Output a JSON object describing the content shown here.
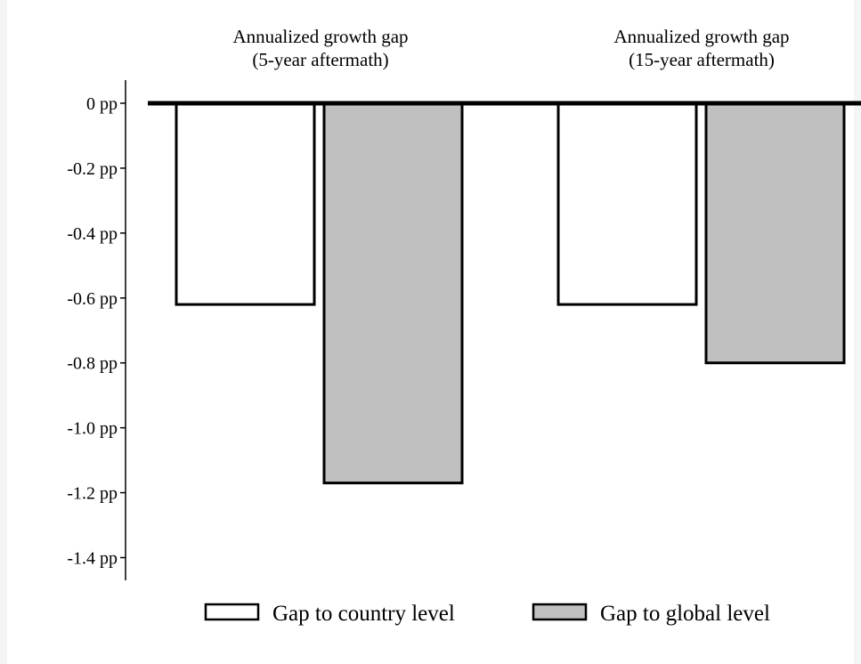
{
  "chart_data": {
    "type": "bar",
    "categories": [
      [
        "Annualized growth gap",
        "(5-year aftermath)"
      ],
      [
        "Annualized growth gap",
        "(15-year aftermath)"
      ]
    ],
    "series": [
      {
        "name": "Gap to country level",
        "values": [
          -0.62,
          -0.62
        ],
        "color": "#ffffff"
      },
      {
        "name": "Gap to global level",
        "values": [
          -1.17,
          -0.8
        ],
        "color": "#c0c0c0"
      }
    ],
    "ylim": [
      -1.47,
      0
    ],
    "yticks": [
      0,
      -0.2,
      -0.4,
      -0.6,
      -0.8,
      -1.0,
      -1.2,
      -1.4
    ],
    "ytick_labels": [
      "0 pp",
      "-0.2 pp",
      "-0.4 pp",
      "-0.6 pp",
      "-0.8 pp",
      "-1.0 pp",
      "-1.2 pp",
      "-1.4 pp"
    ],
    "xlabel": "",
    "ylabel": "",
    "grid": false,
    "legend_position": "bottom",
    "bar_edge_color": "#000000"
  }
}
